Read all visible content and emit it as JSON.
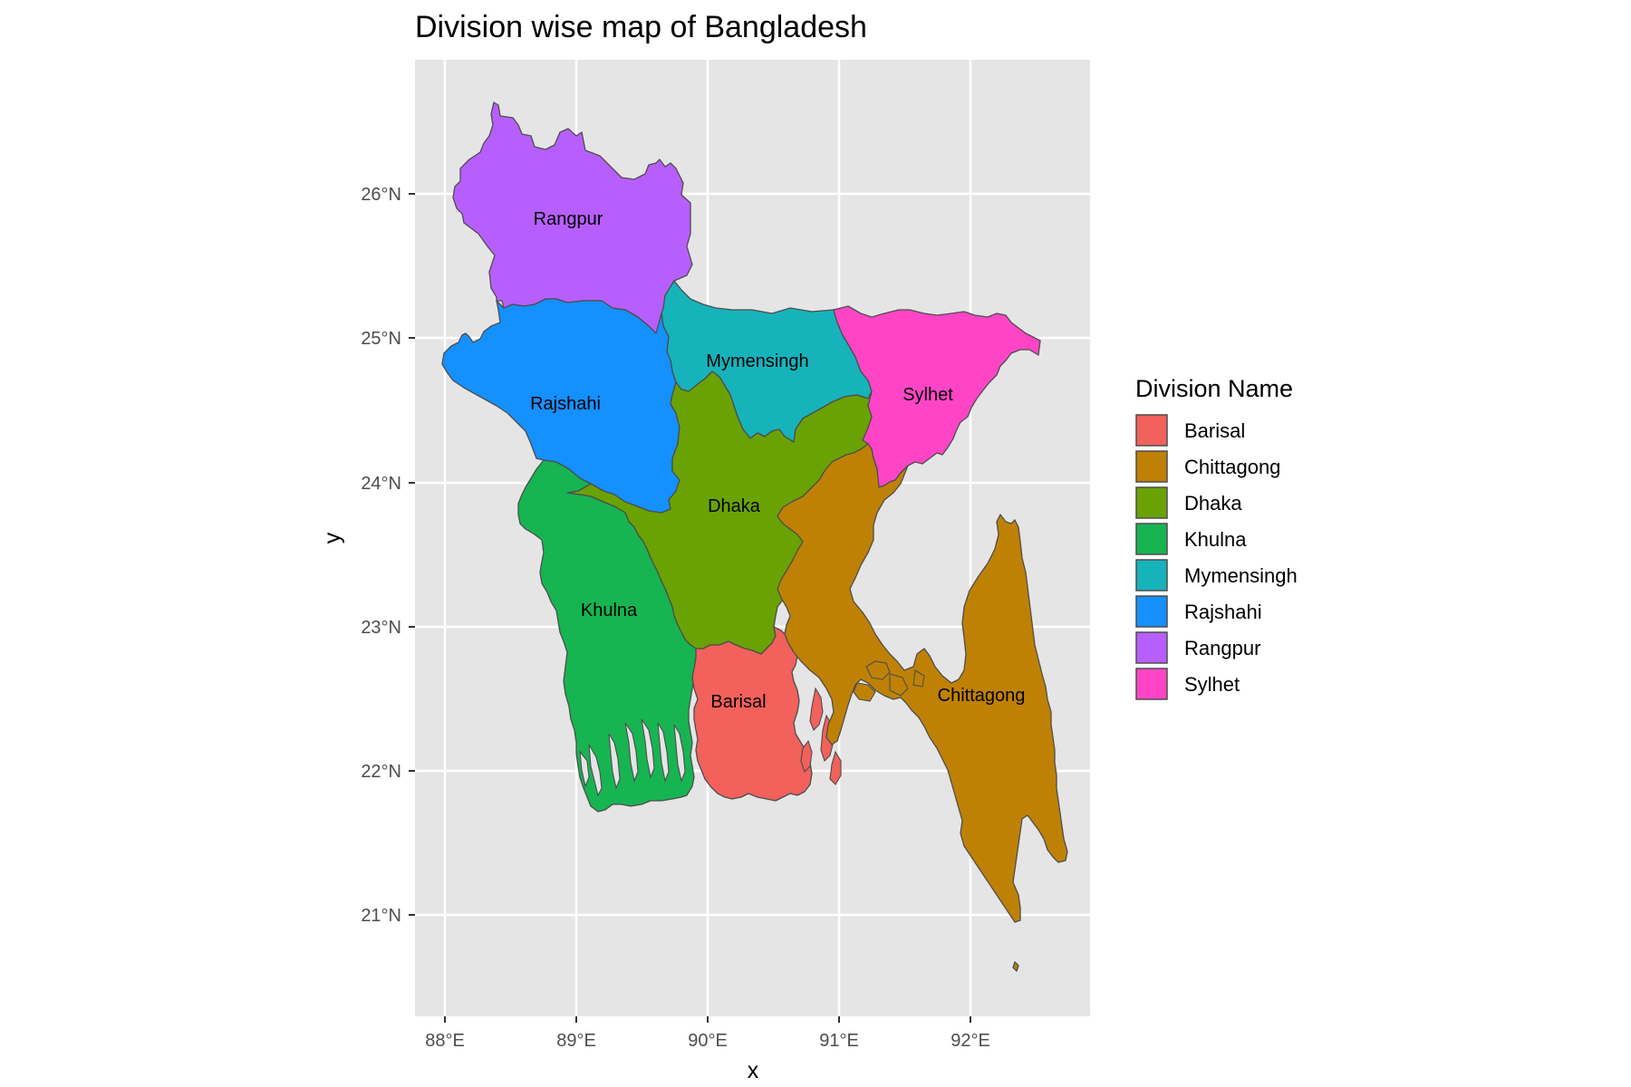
{
  "title": "Division wise map of Bangladesh",
  "axes": {
    "x_title": "x",
    "y_title": "y",
    "x_ticks": [
      "88°E",
      "89°E",
      "90°E",
      "91°E",
      "92°E"
    ],
    "y_ticks": [
      "21°N",
      "22°N",
      "23°N",
      "24°N",
      "25°N",
      "26°N"
    ]
  },
  "legend": {
    "title": "Division Name",
    "items": [
      {
        "label": "Barisal",
        "color": "#F8766D"
      },
      {
        "label": "Chittagong",
        "color": "#C49A00"
      },
      {
        "label": "Dhaka",
        "color": "#53B400"
      },
      {
        "label": "Khulna",
        "color": "#00C094"
      },
      {
        "label": "Mymensingh",
        "color": "#00B6EB"
      },
      {
        "label": "Rajshahi",
        "color": "#A58AFF"
      },
      {
        "label": "Rangpur",
        "color": "#FB61D7"
      },
      {
        "label": "Sylhet",
        "color": "#FF61C3"
      }
    ]
  },
  "map_fill_colors": {
    "Barisal": "#F2615B",
    "Chittagong": "#BF8104",
    "Dhaka": "#6AA203",
    "Khulna": "#17B452",
    "Mymensingh": "#17B3BB",
    "Rajshahi": "#1590FF",
    "Rangpur": "#B75FFE",
    "Sylhet": "#FF45C6"
  },
  "region_labels": [
    "Rangpur",
    "Mymensingh",
    "Rajshahi",
    "Sylhet",
    "Dhaka",
    "Khulna",
    "Barisal",
    "Chittagong"
  ],
  "background": {
    "panel": "#E5E5E5",
    "grid": "#FFFFFF"
  }
}
